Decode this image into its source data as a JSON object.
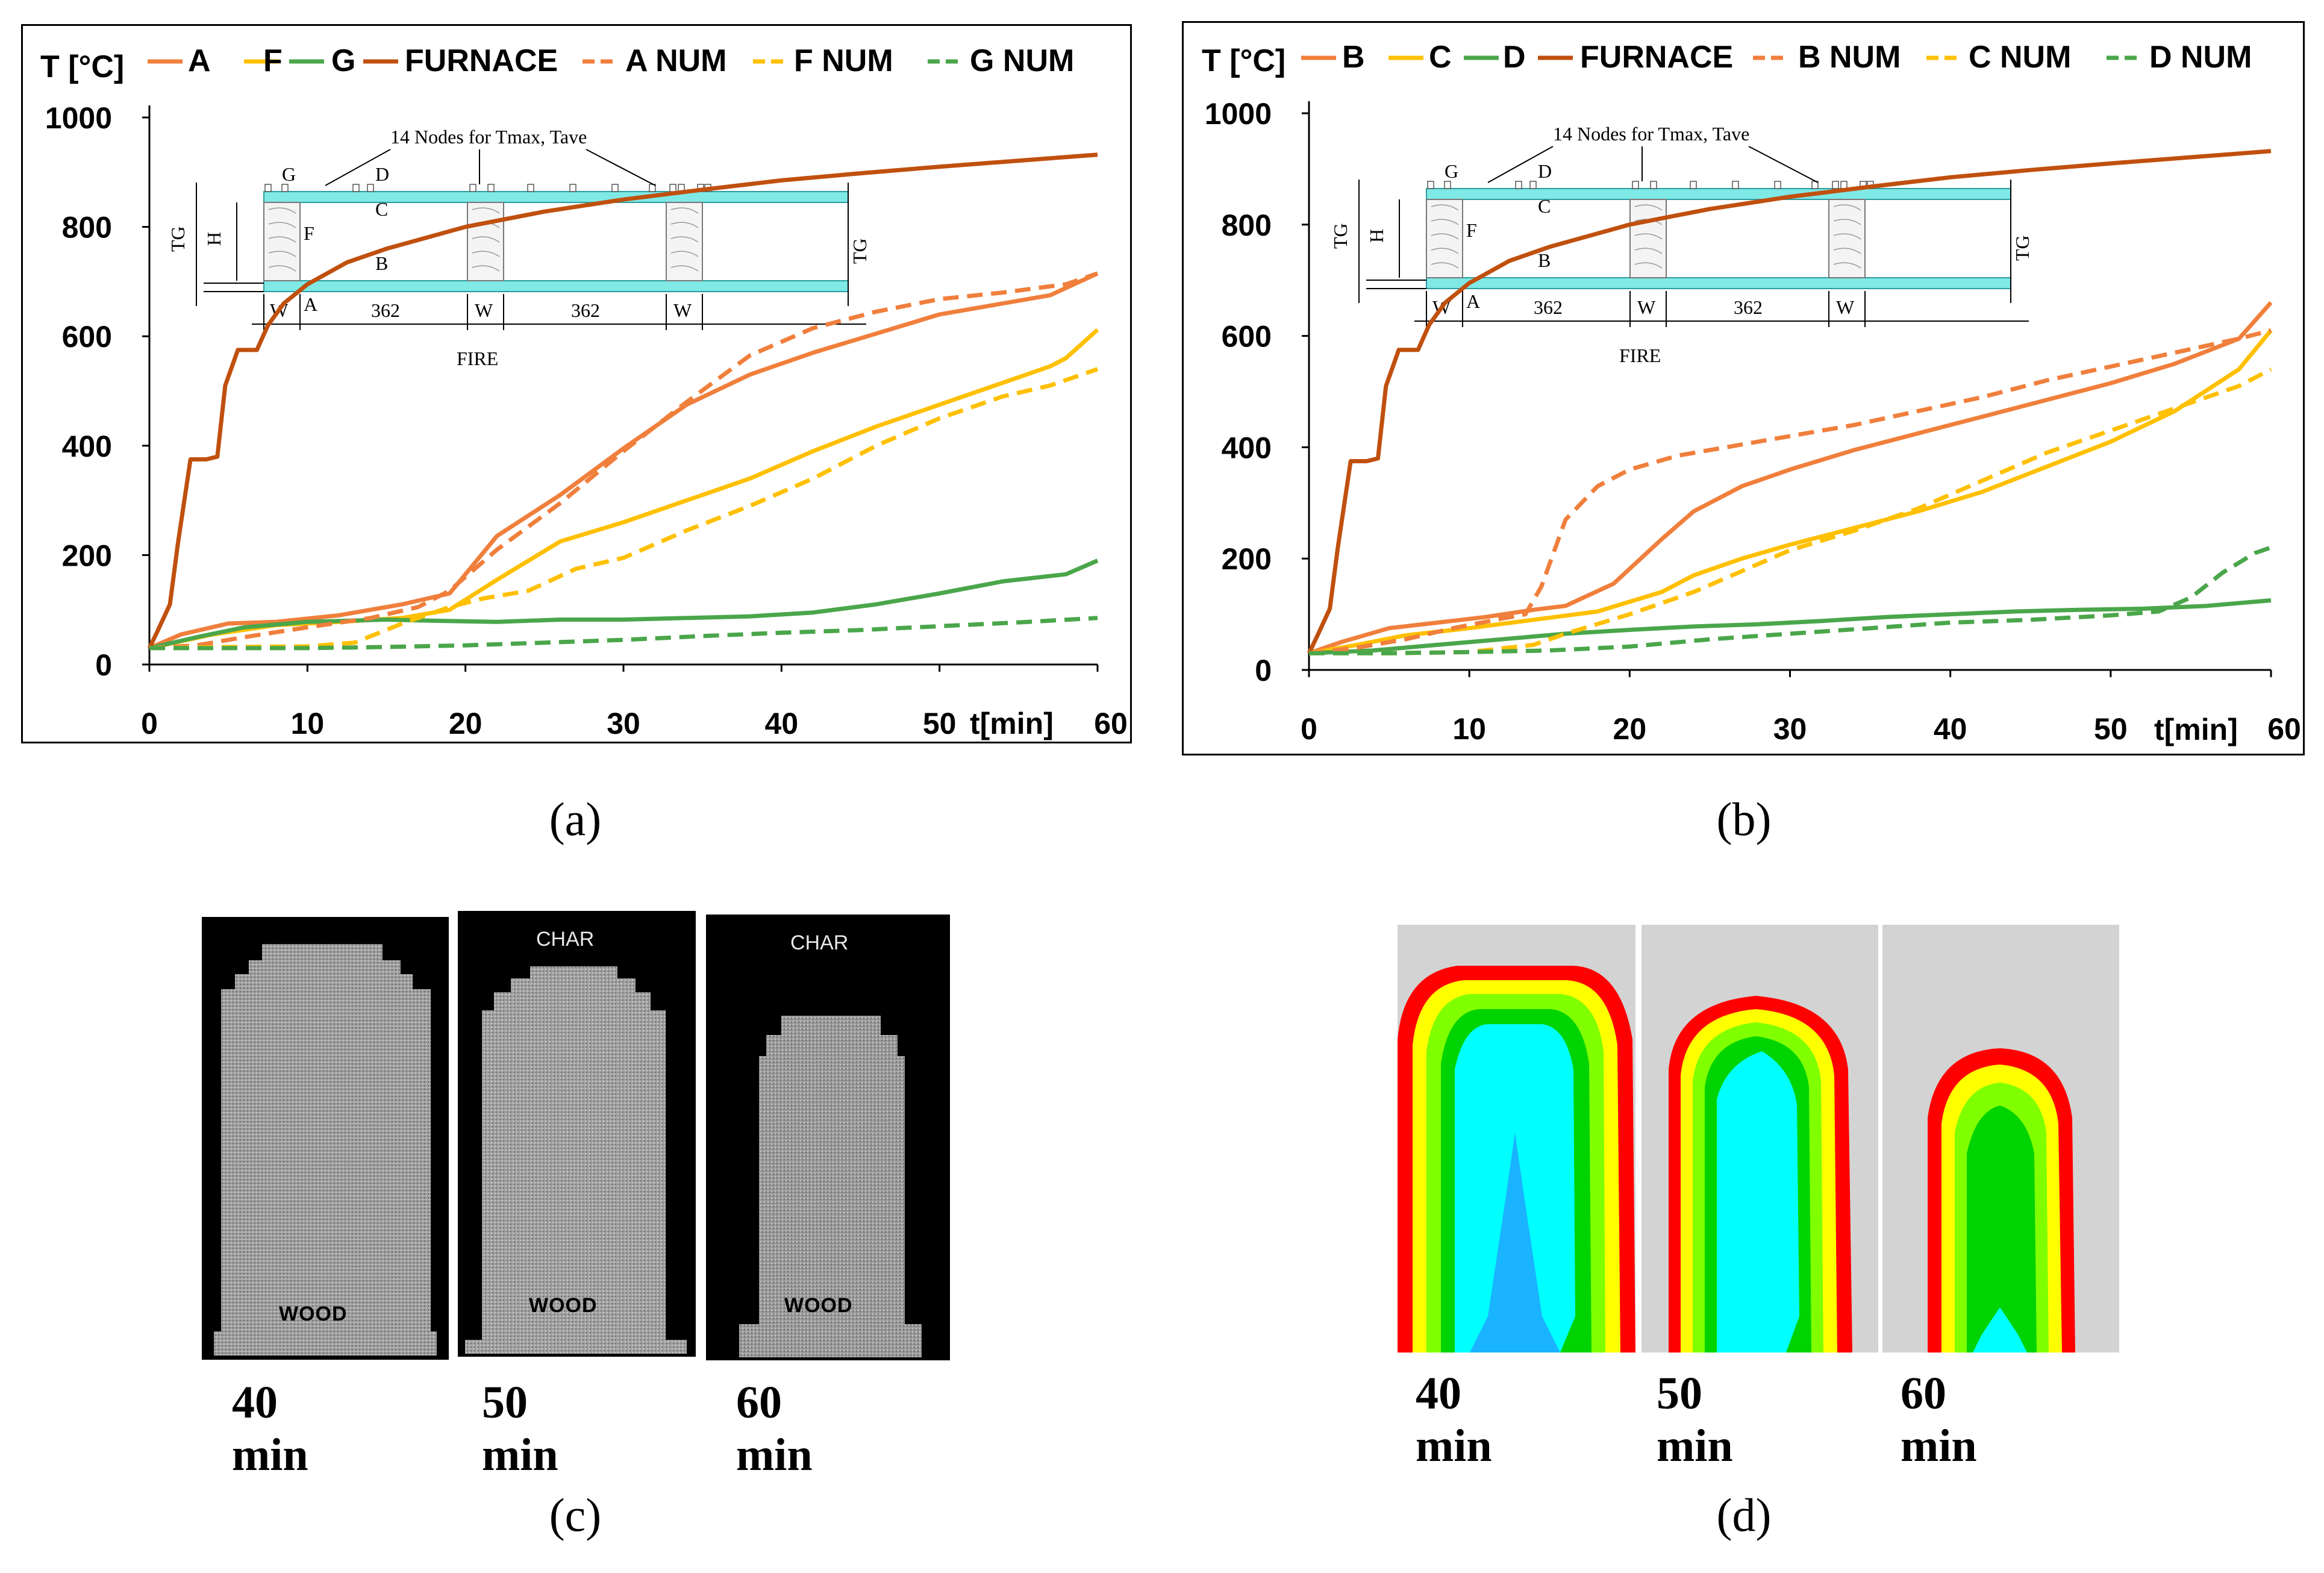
{
  "chart_data": [
    {
      "id": "a",
      "type": "line",
      "caption": "(a)",
      "ylabel": "T [°C]",
      "xlabel": "t[min]",
      "xlim": [
        0,
        60
      ],
      "ylim": [
        0,
        1000
      ],
      "xticks": [
        0,
        10,
        20,
        30,
        40,
        50,
        60
      ],
      "xtick_labels": [
        "0",
        "10",
        "20",
        "30",
        "40",
        "50",
        "60"
      ],
      "yticks": [
        0,
        200,
        400,
        600,
        800,
        1000
      ],
      "ytick_labels": [
        "0",
        "200",
        "400",
        "600",
        "800",
        "1000"
      ],
      "legend": [
        "A",
        "F",
        "G",
        "FURNACE",
        "A NUM",
        "F NUM",
        "G NUM"
      ],
      "series": [
        {
          "name": "A",
          "color": "#f07f3c",
          "dash": false,
          "x": [
            0,
            2,
            5,
            8,
            12,
            16,
            19,
            22,
            26,
            30,
            34,
            38,
            42,
            46,
            50,
            54,
            57,
            60
          ],
          "y": [
            30,
            55,
            75,
            78,
            90,
            110,
            130,
            235,
            310,
            395,
            475,
            530,
            570,
            605,
            640,
            660,
            675,
            715
          ]
        },
        {
          "name": "F",
          "color": "#ffc000",
          "dash": false,
          "x": [
            0,
            4,
            8,
            12,
            16,
            19,
            22,
            26,
            30,
            34,
            38,
            42,
            46,
            50,
            54,
            57,
            58,
            60
          ],
          "y": [
            30,
            55,
            72,
            78,
            85,
            100,
            155,
            225,
            260,
            300,
            340,
            390,
            435,
            475,
            515,
            545,
            560,
            612
          ]
        },
        {
          "name": "G",
          "color": "#4aa64a",
          "dash": false,
          "x": [
            0,
            3,
            6,
            10,
            15,
            18,
            22,
            26,
            30,
            34,
            38,
            42,
            46,
            50,
            54,
            58,
            60
          ],
          "y": [
            30,
            50,
            68,
            78,
            82,
            80,
            78,
            82,
            82,
            85,
            88,
            95,
            110,
            130,
            152,
            165,
            190
          ]
        },
        {
          "name": "FURNACE",
          "color": "#c0500e",
          "dash": false,
          "x": [
            0,
            0.5,
            1.3,
            1.8,
            2.6,
            3.6,
            4.3,
            4.8,
            5.6,
            6.8,
            7.5,
            8.5,
            10,
            12.5,
            15,
            20,
            25,
            30,
            35,
            40,
            45,
            50,
            55,
            60
          ],
          "y": [
            30,
            60,
            110,
            220,
            375,
            375,
            380,
            510,
            575,
            575,
            620,
            660,
            695,
            735,
            760,
            800,
            828,
            850,
            868,
            885,
            898,
            910,
            921,
            932
          ]
        },
        {
          "name": "A NUM",
          "color": "#f07f3c",
          "dash": true,
          "x": [
            0,
            3,
            6,
            10,
            14,
            17,
            19,
            22,
            26,
            30,
            34,
            38,
            42,
            46,
            50,
            54,
            58,
            60
          ],
          "y": [
            30,
            35,
            50,
            68,
            85,
            105,
            135,
            210,
            295,
            390,
            480,
            565,
            615,
            645,
            668,
            680,
            695,
            715
          ]
        },
        {
          "name": "F NUM",
          "color": "#ffc000",
          "dash": true,
          "x": [
            0,
            5,
            10,
            13,
            16,
            19,
            21,
            24,
            27,
            30,
            34,
            38,
            42,
            46,
            50,
            54,
            57,
            60
          ],
          "y": [
            30,
            32,
            33,
            40,
            75,
            105,
            120,
            135,
            175,
            195,
            245,
            290,
            340,
            400,
            450,
            490,
            510,
            540
          ]
        },
        {
          "name": "G NUM",
          "color": "#4aa64a",
          "dash": true,
          "x": [
            0,
            5,
            10,
            15,
            20,
            25,
            30,
            35,
            40,
            45,
            50,
            55,
            60
          ],
          "y": [
            30,
            30,
            30,
            32,
            35,
            40,
            45,
            52,
            58,
            63,
            70,
            77,
            85
          ]
        }
      ]
    },
    {
      "id": "b",
      "type": "line",
      "caption": "(b)",
      "ylabel": "T [°C]",
      "xlabel": "t[min]",
      "xlim": [
        0,
        60
      ],
      "ylim": [
        0,
        1000
      ],
      "xticks": [
        0,
        10,
        20,
        30,
        40,
        50,
        60
      ],
      "xtick_labels": [
        "0",
        "10",
        "20",
        "30",
        "40",
        "50",
        "60"
      ],
      "yticks": [
        0,
        200,
        400,
        600,
        800,
        1000
      ],
      "ytick_labels": [
        "0",
        "200",
        "400",
        "600",
        "800",
        "1000"
      ],
      "legend": [
        "B",
        "C",
        "D",
        "FURNACE",
        "B NUM",
        "C NUM",
        "D NUM"
      ],
      "series": [
        {
          "name": "B",
          "color": "#f07f3c",
          "dash": false,
          "x": [
            0,
            2,
            5,
            8,
            11,
            14,
            16,
            19,
            22,
            24,
            27,
            30,
            34,
            38,
            42,
            46,
            50,
            54,
            58,
            60
          ],
          "y": [
            30,
            50,
            75,
            85,
            95,
            108,
            115,
            155,
            235,
            285,
            330,
            360,
            395,
            425,
            455,
            485,
            515,
            550,
            595,
            660
          ]
        },
        {
          "name": "C",
          "color": "#ffc000",
          "dash": false,
          "x": [
            0,
            3,
            6,
            10,
            14,
            18,
            22,
            24,
            27,
            30,
            34,
            38,
            42,
            46,
            50,
            54,
            58,
            60
          ],
          "y": [
            30,
            45,
            62,
            75,
            90,
            105,
            140,
            170,
            200,
            225,
            255,
            285,
            320,
            365,
            410,
            465,
            540,
            610
          ]
        },
        {
          "name": "D",
          "color": "#4aa64a",
          "dash": false,
          "x": [
            0,
            4,
            8,
            12,
            16,
            20,
            24,
            28,
            32,
            36,
            40,
            44,
            48,
            52,
            56,
            60
          ],
          "y": [
            30,
            35,
            45,
            55,
            65,
            72,
            78,
            82,
            88,
            95,
            100,
            105,
            108,
            110,
            115,
            125
          ]
        },
        {
          "name": "FURNACE",
          "color": "#c0500e",
          "dash": false,
          "x": [
            0,
            0.5,
            1.3,
            1.8,
            2.6,
            3.6,
            4.3,
            4.8,
            5.6,
            6.8,
            7.5,
            8.5,
            10,
            12.5,
            15,
            20,
            25,
            30,
            35,
            40,
            45,
            50,
            55,
            60
          ],
          "y": [
            30,
            60,
            110,
            220,
            375,
            375,
            380,
            510,
            575,
            575,
            620,
            660,
            695,
            735,
            760,
            800,
            828,
            850,
            868,
            885,
            898,
            910,
            921,
            932
          ]
        },
        {
          "name": "B NUM",
          "color": "#f07f3c",
          "dash": true,
          "x": [
            0,
            3,
            6,
            9,
            12,
            13.5,
            14.5,
            16,
            18,
            20,
            23,
            27,
            30,
            34,
            38,
            42,
            46,
            50,
            54,
            58,
            60
          ],
          "y": [
            30,
            40,
            55,
            75,
            92,
            100,
            150,
            270,
            330,
            360,
            385,
            405,
            420,
            440,
            465,
            490,
            520,
            545,
            570,
            595,
            610
          ]
        },
        {
          "name": "C NUM",
          "color": "#ffc000",
          "dash": true,
          "x": [
            0,
            5,
            10,
            14,
            16,
            20,
            24,
            28,
            30,
            34,
            38,
            42,
            46,
            50,
            54,
            58,
            60
          ],
          "y": [
            30,
            30,
            32,
            45,
            65,
            100,
            140,
            190,
            215,
            250,
            290,
            340,
            390,
            430,
            470,
            510,
            540
          ]
        },
        {
          "name": "D NUM",
          "color": "#4aa64a",
          "dash": true,
          "x": [
            0,
            5,
            10,
            15,
            20,
            25,
            30,
            35,
            40,
            45,
            50,
            53,
            55,
            57,
            59,
            60
          ],
          "y": [
            30,
            30,
            32,
            35,
            42,
            55,
            65,
            75,
            85,
            90,
            98,
            105,
            130,
            175,
            210,
            220
          ]
        }
      ]
    }
  ],
  "inset": {
    "title": "14 Nodes for Tmax, Tave",
    "labels": {
      "G": "G",
      "D": "D",
      "C": "C",
      "F": "F",
      "B": "B",
      "A": "A",
      "H": "H",
      "TG": "TG",
      "W": "W",
      "span": "362",
      "fire": "FIRE"
    }
  },
  "panel_c": {
    "caption": "(c)",
    "char_label": "CHAR",
    "wood_label": "WOOD",
    "times": [
      "40 min",
      "50 min",
      "60 min"
    ]
  },
  "panel_d": {
    "caption": "(d)",
    "times": [
      "40 min",
      "50 min",
      "60 min"
    ],
    "colors": {
      "background": "#d3d3d3",
      "red": "#ff0000",
      "yellow": "#ffff00",
      "light_green": "#80ff00",
      "green": "#00d400",
      "cyan": "#00ffff",
      "blue": "#1ab3ff"
    }
  }
}
